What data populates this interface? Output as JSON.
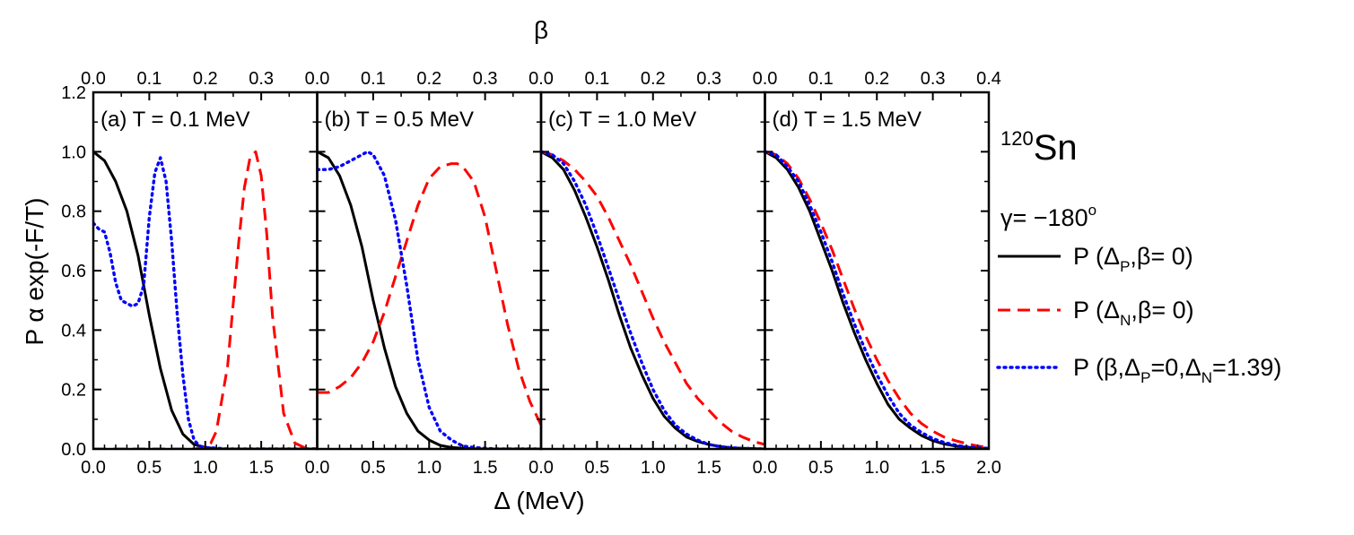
{
  "chart_data": {
    "type": "line",
    "title": "",
    "xlabel": "Δ (MeV)",
    "top_xlabel": "β",
    "ylabel": "P α exp(-F/T)",
    "ylim": [
      0,
      1.2
    ],
    "xlim": [
      0,
      2.0
    ],
    "y_ticks": [
      "0.0",
      "0.2",
      "0.4",
      "0.6",
      "0.8",
      "1.0",
      "1.2"
    ],
    "y_tick_values": [
      0,
      0.2,
      0.4,
      0.6,
      0.8,
      1.0,
      1.2
    ],
    "x_ticks": [
      "0.0",
      "0.5",
      "1.0",
      "1.5"
    ],
    "x_tick_values": [
      0,
      0.5,
      1.0,
      1.5
    ],
    "x_ticks_last": [
      "0.0",
      "0.5",
      "1.0",
      "1.5",
      "2.0"
    ],
    "x_tick_values_last": [
      0,
      0.5,
      1.0,
      1.5,
      2.0
    ],
    "top_ticks": [
      "0.0",
      "0.1",
      "0.2",
      "0.3"
    ],
    "top_tick_values": [
      0,
      0.1,
      0.2,
      0.3
    ],
    "top_ticks_last": [
      "0.0",
      "0.1",
      "0.2",
      "0.3",
      "0.4"
    ],
    "top_tick_values_last": [
      0,
      0.1,
      0.2,
      0.3,
      0.4
    ],
    "nucleus_mass": "120",
    "nucleus_symbol": "Sn",
    "gamma_label": "γ= −180",
    "gamma_degree": "o",
    "legend": [
      {
        "id": "proton",
        "prefix": "P (Δ",
        "sub": "P",
        "suffix": ",β= 0)",
        "color": "#000000",
        "dash": "solid"
      },
      {
        "id": "neutron",
        "prefix": "P (Δ",
        "sub": "N",
        "suffix": ",β= 0)",
        "color": "#ff0000",
        "dash": "dashed"
      },
      {
        "id": "beta",
        "prefix": "P (β,Δ",
        "sub": "P",
        "mid": "=0,Δ",
        "sub2": "N",
        "suffix": "=1.39)",
        "color": "#0000ff",
        "dash": "dotted"
      }
    ],
    "panels": [
      {
        "label": "(a)  T = 0.1 MeV",
        "series": [
          {
            "name": "proton",
            "x": [
              0,
              0.1,
              0.2,
              0.3,
              0.4,
              0.5,
              0.6,
              0.7,
              0.8,
              0.9,
              1.0,
              1.1,
              1.2,
              1.4,
              1.6,
              1.8,
              2.0
            ],
            "y": [
              1.0,
              0.97,
              0.9,
              0.8,
              0.65,
              0.45,
              0.27,
              0.13,
              0.05,
              0.015,
              0.005,
              0.001,
              0,
              0,
              0,
              0,
              0
            ]
          },
          {
            "name": "neutron",
            "x": [
              0,
              0.5,
              0.9,
              1.0,
              1.05,
              1.1,
              1.2,
              1.3,
              1.35,
              1.4,
              1.45,
              1.5,
              1.55,
              1.6,
              1.7,
              1.8,
              1.9,
              2.0
            ],
            "y": [
              0,
              0,
              0,
              0.005,
              0.02,
              0.06,
              0.28,
              0.7,
              0.88,
              0.98,
              1.0,
              0.92,
              0.72,
              0.45,
              0.12,
              0.02,
              0.002,
              0
            ]
          },
          {
            "name": "beta",
            "x": [
              0,
              0.05,
              0.1,
              0.15,
              0.2,
              0.25,
              0.3,
              0.35,
              0.4,
              0.45,
              0.5,
              0.55,
              0.6,
              0.65,
              0.7,
              0.75,
              0.8,
              0.85,
              0.9,
              0.95,
              1.0,
              1.2,
              1.5,
              2.0
            ],
            "y": [
              0.76,
              0.74,
              0.73,
              0.66,
              0.56,
              0.5,
              0.49,
              0.48,
              0.49,
              0.55,
              0.78,
              0.93,
              0.98,
              0.9,
              0.7,
              0.45,
              0.25,
              0.1,
              0.03,
              0.01,
              0.005,
              0,
              0,
              0
            ]
          }
        ]
      },
      {
        "label": "(b)  T = 0.5 MeV",
        "series": [
          {
            "name": "proton",
            "x": [
              0,
              0.1,
              0.2,
              0.3,
              0.4,
              0.5,
              0.6,
              0.7,
              0.8,
              0.9,
              1.0,
              1.1,
              1.2,
              1.3,
              1.4,
              1.5,
              1.6,
              1.8,
              2.0
            ],
            "y": [
              1.0,
              0.98,
              0.92,
              0.82,
              0.68,
              0.5,
              0.34,
              0.21,
              0.12,
              0.06,
              0.03,
              0.012,
              0.005,
              0.002,
              0.001,
              0,
              0,
              0,
              0
            ]
          },
          {
            "name": "neutron",
            "x": [
              0,
              0.1,
              0.2,
              0.3,
              0.4,
              0.5,
              0.6,
              0.7,
              0.8,
              0.9,
              1.0,
              1.1,
              1.2,
              1.25,
              1.3,
              1.4,
              1.5,
              1.6,
              1.7,
              1.8,
              1.9,
              2.0
            ],
            "y": [
              0.19,
              0.19,
              0.21,
              0.24,
              0.29,
              0.36,
              0.46,
              0.58,
              0.7,
              0.82,
              0.91,
              0.95,
              0.96,
              0.96,
              0.95,
              0.9,
              0.78,
              0.6,
              0.42,
              0.27,
              0.16,
              0.08
            ]
          },
          {
            "name": "beta",
            "x": [
              0,
              0.1,
              0.2,
              0.3,
              0.4,
              0.45,
              0.5,
              0.6,
              0.7,
              0.8,
              0.9,
              1.0,
              1.1,
              1.2,
              1.3,
              1.4,
              1.5,
              1.6,
              2.0
            ],
            "y": [
              0.94,
              0.94,
              0.95,
              0.97,
              0.99,
              1.0,
              0.99,
              0.92,
              0.77,
              0.55,
              0.3,
              0.14,
              0.06,
              0.03,
              0.01,
              0.005,
              0.002,
              0,
              0
            ]
          }
        ]
      },
      {
        "label": "(c)  T = 1.0 MeV",
        "series": [
          {
            "name": "proton",
            "x": [
              0,
              0.1,
              0.2,
              0.3,
              0.4,
              0.5,
              0.6,
              0.7,
              0.8,
              0.9,
              1.0,
              1.1,
              1.2,
              1.3,
              1.4,
              1.5,
              1.6,
              1.7,
              1.8,
              2.0
            ],
            "y": [
              1.0,
              0.98,
              0.94,
              0.87,
              0.78,
              0.68,
              0.57,
              0.45,
              0.34,
              0.25,
              0.17,
              0.11,
              0.07,
              0.04,
              0.025,
              0.015,
              0.008,
              0.004,
              0.002,
              0
            ]
          },
          {
            "name": "neutron",
            "x": [
              0,
              0.1,
              0.2,
              0.3,
              0.4,
              0.5,
              0.6,
              0.7,
              0.8,
              0.9,
              1.0,
              1.1,
              1.2,
              1.3,
              1.4,
              1.5,
              1.6,
              1.7,
              1.8,
              1.9,
              2.0
            ],
            "y": [
              1.0,
              0.99,
              0.97,
              0.94,
              0.9,
              0.85,
              0.78,
              0.7,
              0.62,
              0.53,
              0.44,
              0.36,
              0.29,
              0.22,
              0.17,
              0.13,
              0.09,
              0.06,
              0.04,
              0.025,
              0.015
            ]
          },
          {
            "name": "beta",
            "x": [
              0,
              0.1,
              0.2,
              0.3,
              0.4,
              0.5,
              0.6,
              0.7,
              0.8,
              0.9,
              1.0,
              1.1,
              1.2,
              1.3,
              1.4,
              1.5,
              1.6,
              1.7,
              1.8,
              2.0
            ],
            "y": [
              1.0,
              0.99,
              0.96,
              0.9,
              0.82,
              0.72,
              0.61,
              0.5,
              0.39,
              0.29,
              0.2,
              0.13,
              0.08,
              0.05,
              0.03,
              0.015,
              0.008,
              0.004,
              0.002,
              0
            ]
          }
        ]
      },
      {
        "label": "(d)  T = 1.5 MeV",
        "series": [
          {
            "name": "proton",
            "x": [
              0,
              0.1,
              0.2,
              0.3,
              0.4,
              0.5,
              0.6,
              0.7,
              0.8,
              0.9,
              1.0,
              1.1,
              1.2,
              1.3,
              1.4,
              1.5,
              1.6,
              1.7,
              1.8,
              1.9,
              2.0
            ],
            "y": [
              1.0,
              0.98,
              0.94,
              0.88,
              0.8,
              0.7,
              0.6,
              0.49,
              0.39,
              0.3,
              0.22,
              0.15,
              0.1,
              0.07,
              0.045,
              0.028,
              0.017,
              0.01,
              0.006,
              0.003,
              0.001
            ]
          },
          {
            "name": "neutron",
            "x": [
              0,
              0.1,
              0.2,
              0.3,
              0.4,
              0.5,
              0.6,
              0.7,
              0.8,
              0.9,
              1.0,
              1.1,
              1.2,
              1.3,
              1.4,
              1.5,
              1.6,
              1.7,
              1.8,
              1.9,
              2.0
            ],
            "y": [
              1.0,
              0.99,
              0.96,
              0.91,
              0.84,
              0.76,
              0.67,
              0.57,
              0.47,
              0.38,
              0.3,
              0.23,
              0.17,
              0.12,
              0.085,
              0.06,
              0.04,
              0.028,
              0.018,
              0.01,
              0.005
            ]
          },
          {
            "name": "beta",
            "x": [
              0,
              0.1,
              0.2,
              0.3,
              0.4,
              0.5,
              0.6,
              0.7,
              0.8,
              0.9,
              1.0,
              1.1,
              1.2,
              1.3,
              1.4,
              1.5,
              1.6,
              1.7,
              1.8,
              1.9,
              2.0
            ],
            "y": [
              1.0,
              0.99,
              0.95,
              0.9,
              0.82,
              0.73,
              0.63,
              0.52,
              0.42,
              0.33,
              0.25,
              0.18,
              0.12,
              0.08,
              0.055,
              0.035,
              0.022,
              0.013,
              0.007,
              0.004,
              0.002
            ]
          }
        ]
      }
    ]
  }
}
